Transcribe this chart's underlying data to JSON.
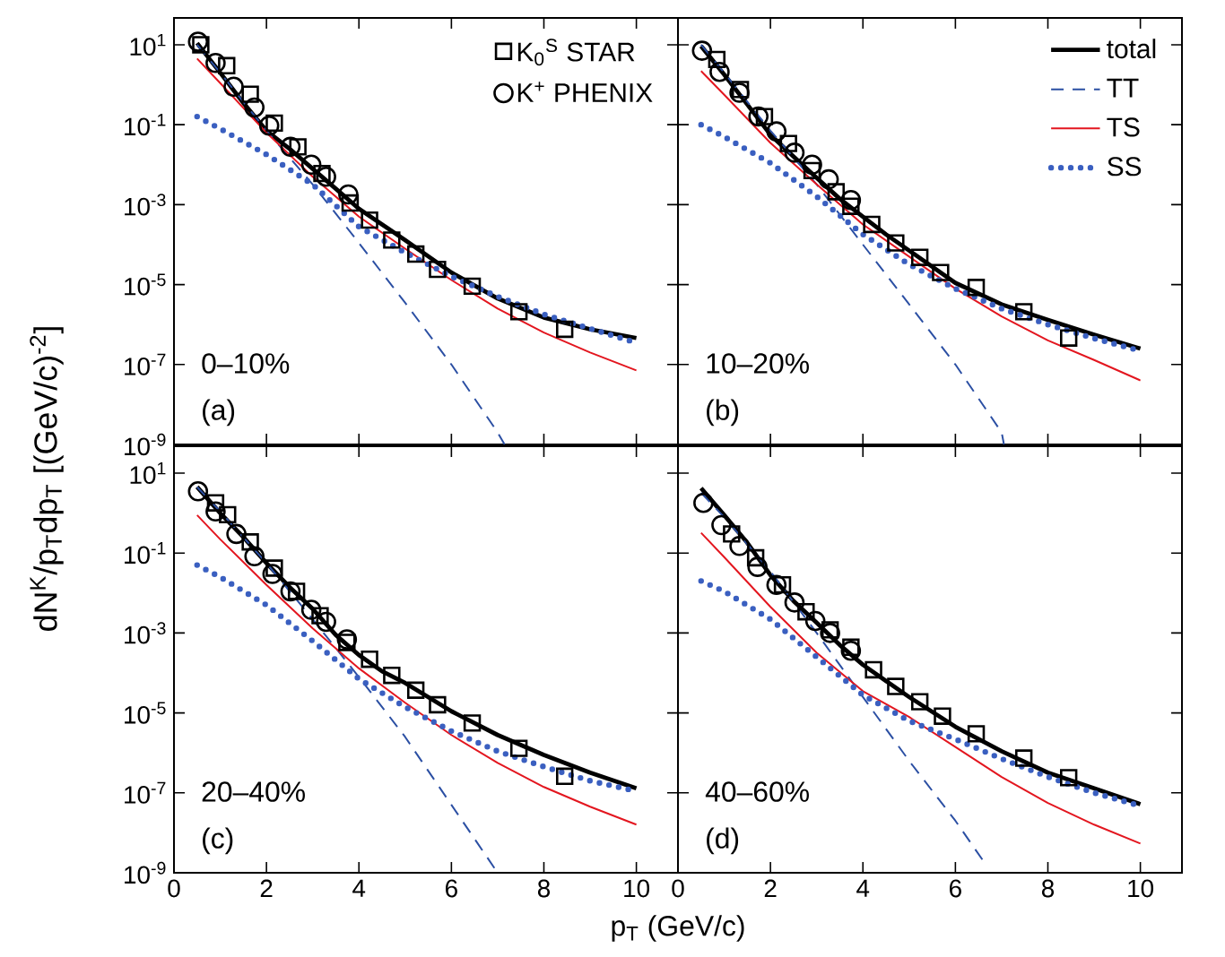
{
  "chart_data": [
    {
      "type": "line",
      "log": "y",
      "xlim": [
        0,
        10.9
      ],
      "ylim": [
        1e-09,
        47
      ],
      "xticks": [
        0,
        2,
        4,
        6,
        8,
        10
      ],
      "yticks": [
        {
          "value": 1e-09,
          "label": "10$^{-9}$"
        },
        {
          "value": 1e-07,
          "label": "10$^{-7}$"
        },
        {
          "value": 1e-05,
          "label": "10$^{-5}$"
        },
        {
          "value": 0.001,
          "label": "10$^{-3}$"
        },
        {
          "value": 0.1,
          "label": "10$^{-1}$"
        },
        {
          "value": 10,
          "label": "10$^{1}$"
        }
      ],
      "tick_labels": "y",
      "legend": "top right",
      "ylabel": "dN$^{K}$/p$_{T}$dp$_{T}$ [(GeV/c)$^{-2}$]",
      "annotations": [
        "0–10%",
        "(a)"
      ],
      "series": [
        {
          "color": "#000000",
          "line_style": "solid",
          "x": [
            0.5,
            1,
            1.5,
            2,
            2.5,
            3,
            3.5,
            4,
            4.5,
            5,
            6,
            7,
            8,
            9,
            10
          ],
          "values": [
            11,
            2.0,
            0.35,
            0.071,
            0.025,
            0.0079,
            0.0025,
            0.00079,
            0.00032,
            0.00013,
            2e-05,
            4.5e-06,
            1.5e-06,
            7.6e-07,
            4.6e-07
          ]
        },
        {
          "color": "#2b4fa3",
          "line_style": "dashed",
          "x": [
            0.5,
            1,
            2,
            3,
            4,
            5,
            6,
            7,
            7.15
          ],
          "values": [
            10,
            2.0,
            0.071,
            0.0032,
            0.00011,
            3.5e-06,
            1e-07,
            2e-09,
            1e-09
          ]
        },
        {
          "color": "#e3161f",
          "line_style": "solid",
          "x": [
            0.5,
            1,
            2,
            3,
            4,
            5,
            6,
            7,
            8,
            9,
            10
          ],
          "values": [
            4.5,
            1.1,
            0.063,
            0.005,
            0.0005,
            7.9e-05,
            1.3e-05,
            2.5e-06,
            6.3e-07,
            2e-07,
            7.1e-08
          ]
        },
        {
          "color": "#3a5fc0",
          "line_style": "dotted",
          "x": [
            0.5,
            1,
            2,
            3,
            4,
            5,
            6,
            7,
            8,
            9,
            10
          ],
          "values": [
            0.16,
            0.079,
            0.018,
            0.0032,
            0.00028,
            6.3e-05,
            1.6e-05,
            5e-06,
            1.8e-06,
            7.9e-07,
            3.5e-07
          ]
        },
        {
          "type": "scatter",
          "name": "K$_{0}$$^{S}$  STAR",
          "marker": "square",
          "color": "#000000",
          "x": [
            0.58,
            1.14,
            1.65,
            2.17,
            2.68,
            3.2,
            3.81,
            4.23,
            4.71,
            5.23,
            5.7,
            6.45,
            7.46,
            8.45
          ],
          "values": [
            10,
            3.0,
            0.58,
            0.11,
            0.028,
            0.006,
            0.0011,
            0.00041,
            0.00013,
            5.8e-05,
            2.4e-05,
            9.1e-06,
            2.1e-06,
            7.6e-07
          ]
        },
        {
          "type": "scatter",
          "name": "K$^{+}$  PHENIX",
          "marker": "circle",
          "color": "#000000",
          "x": [
            0.52,
            0.9,
            1.29,
            1.74,
            2.06,
            2.52,
            2.97,
            3.29,
            3.77
          ],
          "values": [
            12,
            3.5,
            0.89,
            0.27,
            0.095,
            0.028,
            0.01,
            0.005,
            0.0018
          ]
        }
      ]
    },
    {
      "type": "line",
      "log": "y",
      "xlim": [
        0,
        10.9
      ],
      "ylim": [
        1e-09,
        47
      ],
      "xticks": [
        0,
        2,
        4,
        6,
        8,
        10
      ],
      "yticks": [
        1e-09,
        1e-07,
        1e-05,
        0.001,
        0.1,
        10
      ],
      "tick_labels": false,
      "legend": "top right",
      "annotations": [
        "10–20%",
        "(b)"
      ],
      "series": [
        {
          "name": "total",
          "color": "#000000",
          "line_style": "solid",
          "x": [
            0.5,
            1,
            1.5,
            2,
            2.5,
            3,
            3.5,
            4,
            4.5,
            5,
            6,
            7,
            8,
            9,
            10
          ],
          "values": [
            9.3,
            1.8,
            0.32,
            0.056,
            0.016,
            0.0047,
            0.0014,
            0.0005,
            0.00018,
            7.1e-05,
            1.1e-05,
            3.2e-06,
            1.3e-06,
            5.6e-07,
            2.5e-07
          ]
        },
        {
          "name": "TT",
          "color": "#2b4fa3",
          "line_style": "dashed",
          "x": [
            0.5,
            1,
            2,
            3,
            4,
            5,
            6,
            7,
            7.05
          ],
          "values": [
            10,
            2.0,
            0.071,
            0.0032,
            0.0001,
            3.2e-06,
            1e-07,
            2e-09,
            1e-09
          ]
        },
        {
          "name": "TS",
          "color": "#e3161f",
          "line_style": "solid",
          "x": [
            0.5,
            1,
            2,
            3,
            4,
            5,
            6,
            7,
            8,
            9,
            10
          ],
          "values": [
            2.2,
            0.56,
            0.035,
            0.0032,
            0.00032,
            5e-05,
            7.9e-06,
            1.6e-06,
            4e-07,
            1.3e-07,
            4e-08
          ]
        },
        {
          "name": "SS",
          "color": "#3a5fc0",
          "line_style": "dotted",
          "x": [
            0.5,
            1,
            2,
            3,
            4,
            5,
            6,
            7,
            8,
            9,
            10
          ],
          "values": [
            0.1,
            0.05,
            0.011,
            0.0016,
            0.00018,
            3.2e-05,
            7.9e-06,
            2.5e-06,
            1e-06,
            4.5e-07,
            2.2e-07
          ]
        },
        {
          "type": "scatter",
          "marker": "square",
          "color": "#000000",
          "x": [
            0.84,
            1.35,
            1.87,
            2.39,
            2.9,
            3.42,
            3.74,
            4.19,
            4.71,
            5.23,
            5.68,
            6.45,
            7.48,
            8.45
          ],
          "values": [
            4.3,
            0.76,
            0.16,
            0.034,
            0.0071,
            0.0021,
            0.00091,
            0.00032,
            0.00011,
            4.8e-05,
            2e-05,
            8.5e-06,
            2.1e-06,
            4.6e-07
          ]
        },
        {
          "type": "scatter",
          "marker": "circle",
          "color": "#000000",
          "x": [
            0.52,
            0.9,
            1.33,
            1.74,
            2.13,
            2.52,
            2.9,
            3.26,
            3.74
          ],
          "values": [
            7.1,
            2.1,
            0.63,
            0.16,
            0.068,
            0.02,
            0.01,
            0.0043,
            0.0013
          ]
        }
      ]
    },
    {
      "type": "line",
      "log": "y",
      "xlim": [
        0,
        10.9
      ],
      "ylim": [
        1e-09,
        47
      ],
      "xticks": [
        0,
        2,
        4,
        6,
        8,
        10
      ],
      "yticks": [
        {
          "value": 1e-09,
          "label": "10$^{-9}$"
        },
        {
          "value": 1e-07,
          "label": "10$^{-7}$"
        },
        {
          "value": 1e-05,
          "label": "10$^{-5}$"
        },
        {
          "value": 0.001,
          "label": "10$^{-3}$"
        },
        {
          "value": 0.1,
          "label": "10$^{-1}$"
        },
        {
          "value": 10,
          "label": "10$^{1}$"
        }
      ],
      "xlabel": "p$_{T}$ (GeV/c)",
      "annotations": [
        "20–40%",
        "(c)"
      ],
      "series": [
        {
          "color": "#000000",
          "line_style": "solid",
          "x": [
            0.5,
            1,
            1.5,
            2,
            2.5,
            3,
            3.5,
            4,
            4.5,
            5,
            6,
            7,
            8,
            9,
            10
          ],
          "values": [
            4.5,
            1.0,
            0.25,
            0.056,
            0.014,
            0.004,
            0.00089,
            0.00028,
            0.00011,
            5.6e-05,
            1.1e-05,
            2.8e-06,
            8.9e-07,
            3.2e-07,
            1.3e-07
          ]
        },
        {
          "color": "#2b4fa3",
          "line_style": "dashed",
          "x": [
            0.5,
            1,
            2,
            3,
            4,
            5,
            6,
            7
          ],
          "values": [
            4.5,
            1.1,
            0.056,
            0.0022,
            7.9e-05,
            2.5e-06,
            5e-08,
            1e-09
          ]
        },
        {
          "color": "#e3161f",
          "line_style": "solid",
          "x": [
            0.5,
            1,
            2,
            3,
            4,
            5,
            6,
            7,
            8,
            9,
            10
          ],
          "values": [
            0.89,
            0.22,
            0.016,
            0.0013,
            0.00013,
            1.8e-05,
            2.8e-06,
            5.6e-07,
            1.4e-07,
            4.5e-08,
            1.6e-08
          ]
        },
        {
          "color": "#3a5fc0",
          "line_style": "dotted",
          "x": [
            0.5,
            1,
            2,
            3,
            4,
            5,
            6,
            7,
            8,
            9,
            10
          ],
          "values": [
            0.05,
            0.025,
            0.005,
            0.00063,
            7.1e-05,
            1.4e-05,
            3.5e-06,
            1.1e-06,
            4.5e-07,
            2e-07,
            1.1e-07
          ]
        },
        {
          "type": "scatter",
          "marker": "square",
          "color": "#000000",
          "x": [
            0.9,
            1.16,
            1.65,
            2.17,
            2.65,
            3.16,
            3.74,
            4.23,
            4.71,
            5.23,
            5.7,
            6.45,
            7.46,
            8.45
          ],
          "values": [
            1.8,
            0.91,
            0.19,
            0.042,
            0.011,
            0.0027,
            0.00058,
            0.00022,
            8.7e-05,
            3.7e-05,
            1.6e-05,
            5.6e-06,
            1.3e-06,
            2.6e-07
          ]
        },
        {
          "type": "scatter",
          "marker": "circle",
          "color": "#000000",
          "x": [
            0.52,
            0.9,
            1.35,
            1.74,
            2.13,
            2.52,
            2.97,
            3.29,
            3.74
          ],
          "values": [
            3.5,
            1.1,
            0.3,
            0.083,
            0.03,
            0.011,
            0.0038,
            0.0019,
            0.00069
          ]
        }
      ]
    },
    {
      "type": "line",
      "log": "y",
      "xlim": [
        0,
        10.9
      ],
      "ylim": [
        1e-09,
        47
      ],
      "xticks": [
        0,
        2,
        4,
        6,
        8,
        10
      ],
      "yticks": [
        1e-09,
        1e-07,
        1e-05,
        0.001,
        0.1,
        10
      ],
      "tick_labels": "x",
      "annotations": [
        "40–60%",
        "(d)"
      ],
      "series": [
        {
          "color": "#000000",
          "line_style": "solid",
          "x": [
            0.5,
            1,
            1.5,
            2,
            2.5,
            3,
            3.5,
            4,
            4.5,
            5,
            6,
            7,
            8,
            9,
            10
          ],
          "values": [
            4.2,
            0.89,
            0.18,
            0.028,
            0.0063,
            0.0018,
            0.0005,
            0.00016,
            6.3e-05,
            2.5e-05,
            4.5e-06,
            1.1e-06,
            3.2e-07,
            1.3e-07,
            5.2e-08
          ]
        },
        {
          "color": "#2b4fa3",
          "line_style": "dashed",
          "x": [
            0.5,
            1,
            2,
            3,
            4,
            5,
            6,
            6.6
          ],
          "values": [
            3.2,
            0.79,
            0.035,
            0.001,
            2.5e-05,
            6.3e-07,
            2e-08,
            2e-09
          ]
        },
        {
          "color": "#e3161f",
          "line_style": "solid",
          "x": [
            0.5,
            1,
            2,
            3,
            4,
            5,
            6,
            7,
            8,
            9,
            10
          ],
          "values": [
            0.32,
            0.079,
            0.0045,
            0.00032,
            3.5e-05,
            7.9e-06,
            1.4e-06,
            2.5e-07,
            5.6e-08,
            1.6e-08,
            5.4e-09
          ]
        },
        {
          "color": "#3a5fc0",
          "line_style": "dotted",
          "x": [
            0.5,
            1,
            2,
            3,
            4,
            5,
            6,
            7,
            8,
            9,
            10
          ],
          "values": [
            0.02,
            0.011,
            0.0022,
            0.00025,
            2.8e-05,
            6.3e-06,
            2.2e-06,
            7.1e-07,
            2.5e-07,
            1e-07,
            4.7e-08
          ]
        },
        {
          "type": "scatter",
          "marker": "square",
          "color": "#000000",
          "x": [
            1.16,
            1.68,
            2.26,
            2.77,
            3.29,
            3.74,
            4.23,
            4.71,
            5.23,
            5.72,
            6.45,
            7.48,
            8.45
          ],
          "values": [
            0.3,
            0.076,
            0.016,
            0.0034,
            0.0012,
            0.00044,
            0.00012,
            4.6e-05,
            1.9e-05,
            8.3e-06,
            3e-06,
            7.4e-07,
            2.4e-07
          ]
        },
        {
          "type": "scatter",
          "marker": "circle",
          "color": "#000000",
          "x": [
            0.55,
            0.94,
            1.33,
            1.72,
            2.13,
            2.52,
            2.97,
            3.29,
            3.74
          ],
          "values": [
            1.8,
            0.5,
            0.15,
            0.045,
            0.016,
            0.0058,
            0.002,
            0.001,
            0.00036
          ]
        }
      ]
    }
  ]
}
